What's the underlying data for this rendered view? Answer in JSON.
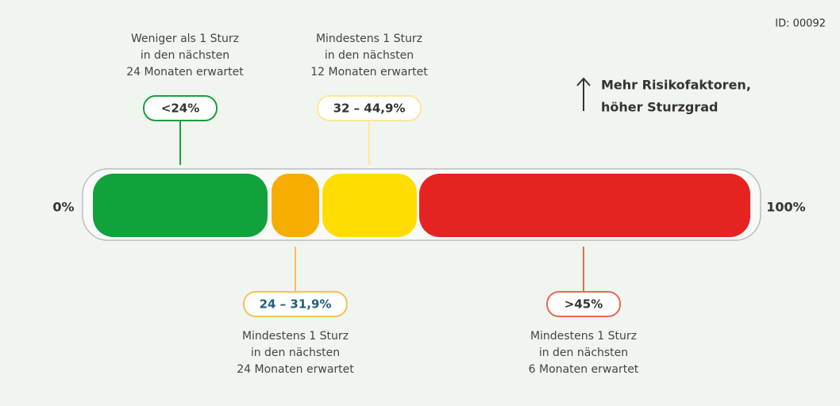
{
  "id_label": "ID: 00092",
  "scale": {
    "start": "0%",
    "end": "100%"
  },
  "note": {
    "lines": [
      "Mehr Risikofaktoren,",
      "höher Sturzgrad"
    ]
  },
  "segments": [
    {
      "badge": "<24%",
      "description": [
        "Weniger als 1 Sturz",
        "in den nächsten",
        "24 Monaten erwartet"
      ]
    },
    {
      "badge": "24 – 31,9%",
      "description": [
        "Mindestens 1 Sturz",
        "in den nächsten",
        "24 Monaten erwartet"
      ]
    },
    {
      "badge": "32 – 44,9%",
      "description": [
        "Mindestens 1 Sturz",
        "in den nächsten",
        "12 Monaten erwartet"
      ]
    },
    {
      "badge": ">45%",
      "description": [
        "Mindestens 1 Sturz",
        "in den nächsten",
        "6 Monaten erwartet"
      ]
    }
  ]
}
